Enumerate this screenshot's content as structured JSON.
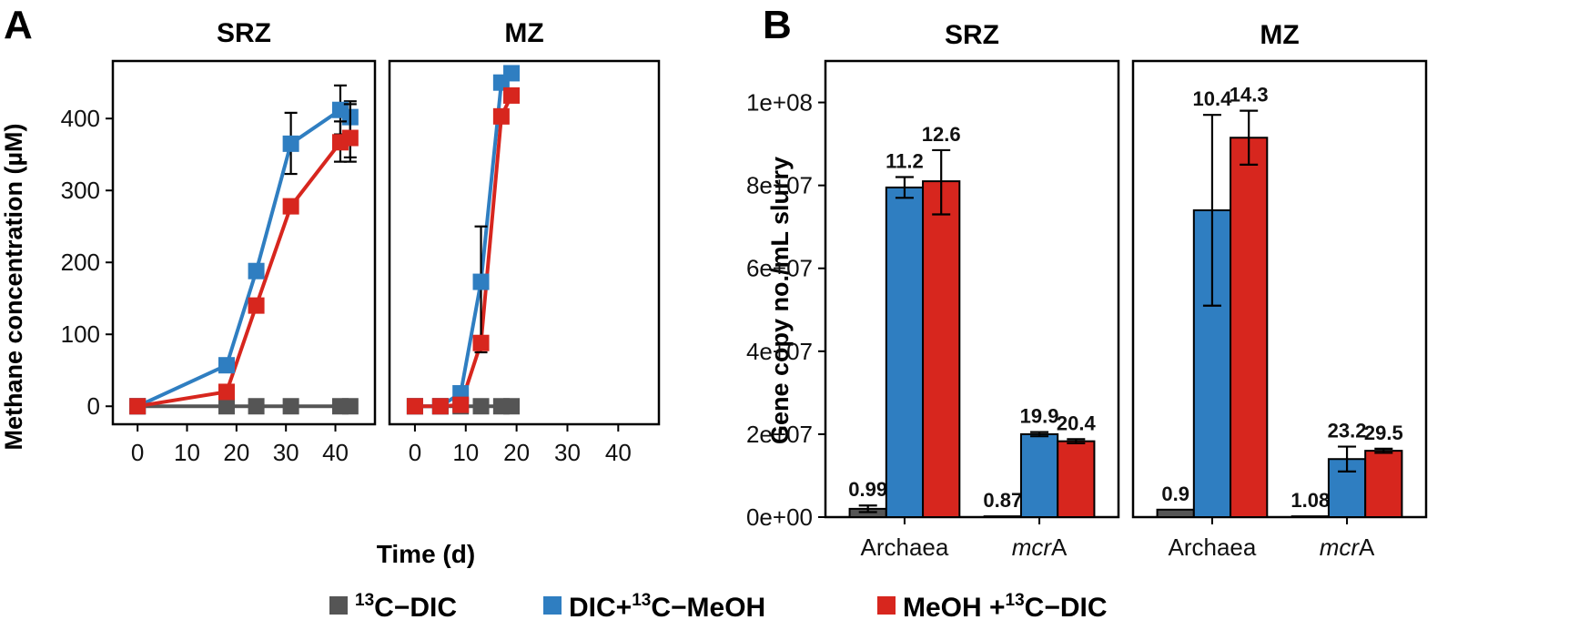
{
  "panels": {
    "a": "A",
    "b": "B"
  },
  "legend": [
    {
      "sup": "13",
      "text": "C−DIC",
      "color": "#555555"
    },
    {
      "pre": "DIC+",
      "sup": "13",
      "text": "C−MeOH",
      "color": "#2f7ec1"
    },
    {
      "pre": "MeOH +",
      "sup": "13",
      "text": "C−DIC",
      "color": "#d7261e"
    }
  ],
  "chart_data": [
    {
      "type": "line",
      "id": "A",
      "ylabel": "Methane concentration (µM)",
      "xlabel": "Time (d)",
      "xlim": [
        -5,
        48
      ],
      "ylim": [
        -25,
        480
      ],
      "xticks": [
        0,
        10,
        20,
        30,
        40
      ],
      "yticks": [
        0,
        100,
        200,
        300,
        400
      ],
      "facets": [
        {
          "title": "SRZ",
          "series": [
            {
              "name": "13C-DIC",
              "color": "#555555",
              "x": [
                0,
                18,
                24,
                31,
                41,
                43
              ],
              "y": [
                0,
                0,
                0,
                0,
                0,
                0
              ]
            },
            {
              "name": "DIC+13C-MeOH",
              "color": "#2f7ec1",
              "x": [
                0,
                18,
                24,
                31,
                41,
                43
              ],
              "y": [
                0,
                57,
                188,
                365,
                412,
                402
              ],
              "err": [
                null,
                null,
                null,
                [
                  323,
                  408
                ],
                [
                  378,
                  446
                ],
                [
                  346,
                  424
                ]
              ]
            },
            {
              "name": "MeOH+13C-DIC",
              "color": "#d7261e",
              "x": [
                0,
                18,
                24,
                31,
                41,
                43
              ],
              "y": [
                0,
                20,
                140,
                278,
                367,
                373
              ],
              "err": [
                null,
                null,
                null,
                null,
                [
                  340,
                  396
                ],
                [
                  340,
                  420
                ]
              ]
            }
          ]
        },
        {
          "title": "MZ",
          "series": [
            {
              "name": "13C-DIC",
              "color": "#555555",
              "x": [
                0,
                5,
                9,
                13,
                17,
                19
              ],
              "y": [
                0,
                0,
                0,
                0,
                0,
                0
              ]
            },
            {
              "name": "DIC+13C-MeOH",
              "color": "#2f7ec1",
              "x": [
                0,
                5,
                9,
                13,
                17,
                19
              ],
              "y": [
                0,
                0,
                18,
                173,
                450,
                463
              ],
              "err": [
                null,
                null,
                null,
                [
                  75,
                  250
                ],
                null,
                null
              ]
            },
            {
              "name": "MeOH+13C-DIC",
              "color": "#d7261e",
              "x": [
                0,
                5,
                9,
                13,
                17,
                19
              ],
              "y": [
                0,
                0,
                2,
                88,
                403,
                432
              ],
              "err": [
                null,
                null,
                null,
                null,
                null,
                null
              ]
            }
          ]
        }
      ]
    },
    {
      "type": "bar",
      "id": "B",
      "ylabel": "Gene copy no./mL slurry",
      "ylim": [
        0,
        110000000
      ],
      "yticks": [
        0,
        20000000,
        40000000,
        60000000,
        80000000,
        100000000
      ],
      "yticklabels": [
        "0e+00",
        "2e+07",
        "4e+07",
        "6e+07",
        "8e+07",
        "1e+08"
      ],
      "facets": [
        {
          "title": "SRZ",
          "categories": [
            {
              "label": "Archaea",
              "italic": "",
              "bars": [
                {
                  "series": "13C-DIC",
                  "color": "#555555",
                  "value": 2000000,
                  "err": [
                    1200000,
                    2800000
                  ],
                  "label": "0.99"
                },
                {
                  "series": "DIC+13C-MeOH",
                  "color": "#2f7ec1",
                  "value": 79500000,
                  "err": [
                    77000000,
                    82000000
                  ],
                  "label": "11.2"
                },
                {
                  "series": "MeOH+13C-DIC",
                  "color": "#d7261e",
                  "value": 81000000,
                  "err": [
                    73000000,
                    88500000
                  ],
                  "label": "12.6"
                }
              ]
            },
            {
              "label": "A",
              "italic": "mcr",
              "bars": [
                {
                  "series": "13C-DIC",
                  "color": "#555555",
                  "value": 200000,
                  "err": null,
                  "label": "0.87"
                },
                {
                  "series": "DIC+13C-MeOH",
                  "color": "#2f7ec1",
                  "value": 20000000,
                  "err": [
                    19500000,
                    20500000
                  ],
                  "label": "19.9"
                },
                {
                  "series": "MeOH+13C-DIC",
                  "color": "#d7261e",
                  "value": 18300000,
                  "err": [
                    17800000,
                    18800000
                  ],
                  "label": "20.4"
                }
              ]
            }
          ]
        },
        {
          "title": "MZ",
          "categories": [
            {
              "label": "Archaea",
              "italic": "",
              "bars": [
                {
                  "series": "13C-DIC",
                  "color": "#555555",
                  "value": 1800000,
                  "err": null,
                  "label": "0.9"
                },
                {
                  "series": "DIC+13C-MeOH",
                  "color": "#2f7ec1",
                  "value": 74000000,
                  "err": [
                    51000000,
                    97000000
                  ],
                  "label": "10.4"
                },
                {
                  "series": "MeOH+13C-DIC",
                  "color": "#d7261e",
                  "value": 91500000,
                  "err": [
                    85000000,
                    98000000
                  ],
                  "label": "14.3"
                }
              ]
            },
            {
              "label": "A",
              "italic": "mcr",
              "bars": [
                {
                  "series": "13C-DIC",
                  "color": "#555555",
                  "value": 200000,
                  "err": null,
                  "label": "1.08"
                },
                {
                  "series": "DIC+13C-MeOH",
                  "color": "#2f7ec1",
                  "value": 14000000,
                  "err": [
                    11000000,
                    17000000
                  ],
                  "label": "23.2"
                },
                {
                  "series": "MeOH+13C-DIC",
                  "color": "#d7261e",
                  "value": 16000000,
                  "err": [
                    15500000,
                    16500000
                  ],
                  "label": "29.5"
                }
              ]
            }
          ]
        }
      ]
    }
  ]
}
